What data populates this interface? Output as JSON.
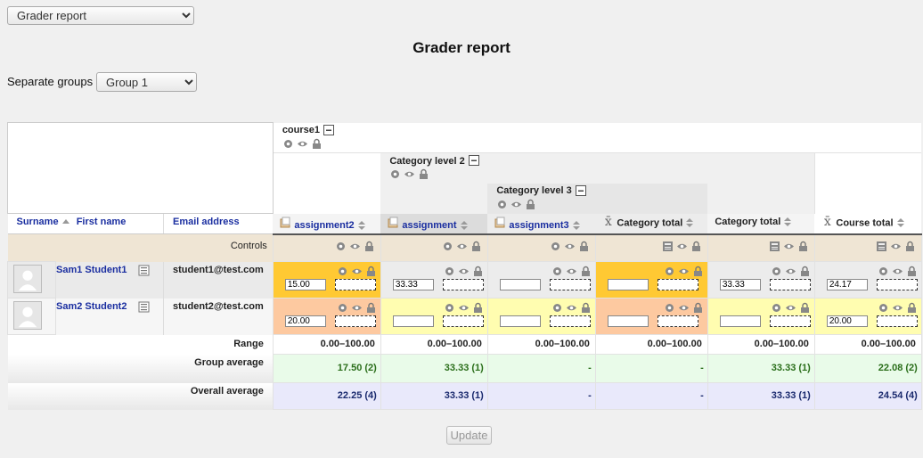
{
  "view_select": {
    "value": "Grader report"
  },
  "page_title": "Grader report",
  "groups": {
    "label": "Separate groups",
    "value": "Group 1"
  },
  "tree": {
    "course": "course1",
    "category2": "Category level 2",
    "category3": "Category level 3"
  },
  "headers": {
    "surname": "Surname",
    "firstname": "First name",
    "email": "Email address",
    "columns": [
      "assignment2",
      "assignment",
      "assignment3",
      "Category total",
      "Category total",
      "Course total"
    ]
  },
  "controls_label": "Controls",
  "students": [
    {
      "name": "Sam1 Student1",
      "email": "student1@test.com",
      "grades": [
        "15.00",
        "33.33",
        "",
        "",
        "33.33",
        "24.17"
      ]
    },
    {
      "name": "Sam2 Student2",
      "email": "student2@test.com",
      "grades": [
        "20.00",
        "",
        "",
        "",
        "",
        "20.00"
      ]
    }
  ],
  "range": {
    "label": "Range",
    "values": [
      "0.00–100.00",
      "0.00–100.00",
      "0.00–100.00",
      "0.00–100.00",
      "0.00–100.00",
      "0.00–100.00"
    ]
  },
  "group_average": {
    "label": "Group average",
    "values": [
      "17.50 (2)",
      "33.33 (1)",
      "-",
      "-",
      "33.33 (1)",
      "22.08 (2)"
    ]
  },
  "overall_average": {
    "label": "Overall average",
    "values": [
      "22.25 (4)",
      "33.33 (1)",
      "-",
      "-",
      "33.33 (1)",
      "24.54 (4)"
    ]
  },
  "update_button": "Update",
  "colors": {
    "highlight_orange": "#ffc933",
    "peach": "#fdc9a0",
    "yellow": "#fffdb0",
    "group_avg_bg": "#e9fbe9",
    "overall_avg_bg": "#e9e9fb",
    "controls_bg": "#efe5d4",
    "link": "#1a2ea0"
  }
}
